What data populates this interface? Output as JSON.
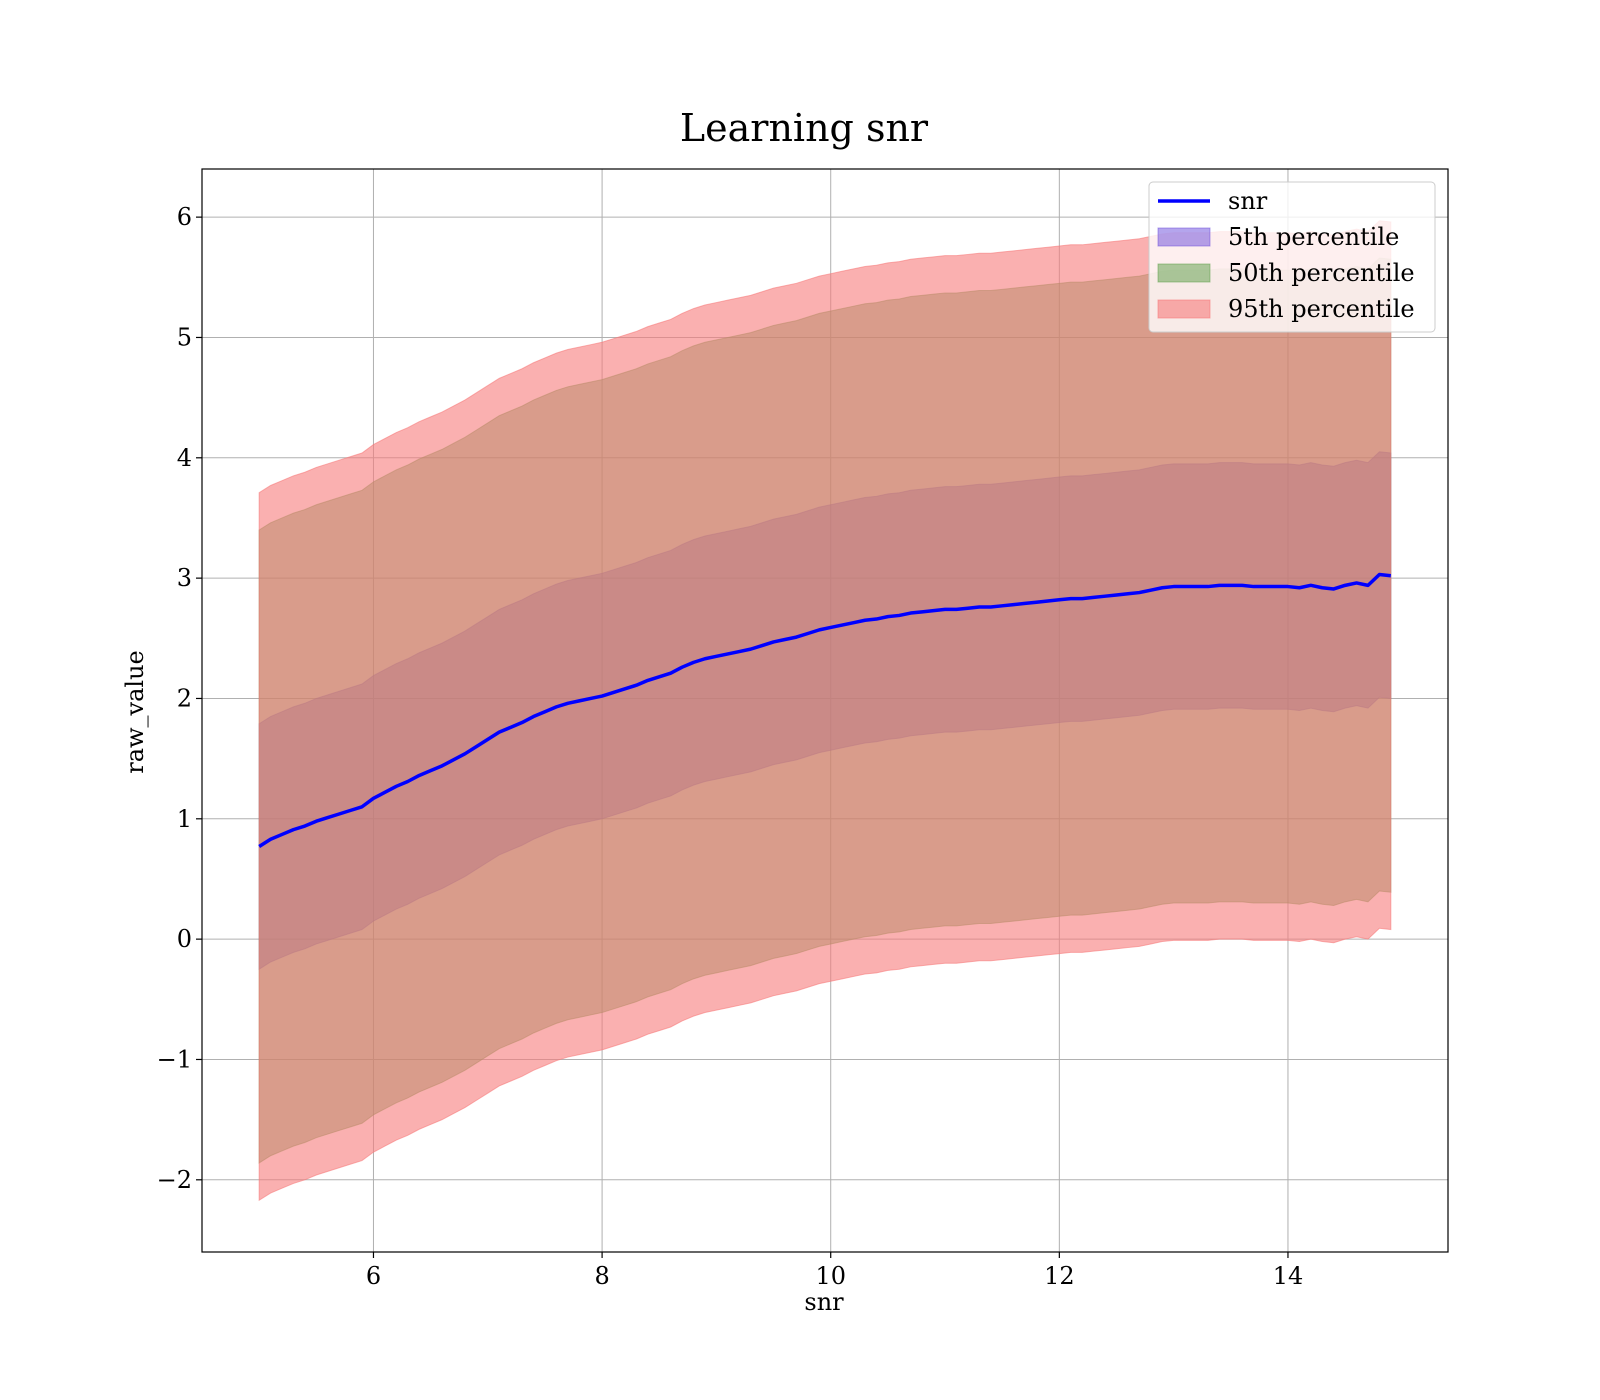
{
  "chart_data": {
    "type": "area",
    "title": "Learning snr",
    "xlabel": "snr",
    "ylabel": "raw_value",
    "xlim": [
      4.5,
      15.4
    ],
    "ylim": [
      -2.6,
      6.4
    ],
    "grid": true,
    "legend_position": "top-right",
    "x_ticks": [
      6,
      8,
      10,
      12,
      14
    ],
    "x_tick_labels": [
      "6",
      "8",
      "10",
      "12",
      "14"
    ],
    "y_ticks": [
      -2,
      -1,
      0,
      1,
      2,
      3,
      4,
      5,
      6
    ],
    "y_tick_labels": [
      "−2",
      "−1",
      "0",
      "1",
      "2",
      "3",
      "4",
      "5",
      "6"
    ],
    "x": [
      5.0,
      5.1,
      5.2,
      5.3,
      5.4,
      5.5,
      5.6,
      5.7,
      5.8,
      5.9,
      6.0,
      6.1,
      6.2,
      6.3,
      6.4,
      6.5,
      6.6,
      6.7,
      6.8,
      6.9,
      7.0,
      7.1,
      7.2,
      7.3,
      7.4,
      7.5,
      7.6,
      7.7,
      7.8,
      7.9,
      8.0,
      8.1,
      8.2,
      8.3,
      8.4,
      8.5,
      8.6,
      8.7,
      8.8,
      8.9,
      9.0,
      9.1,
      9.2,
      9.3,
      9.4,
      9.5,
      9.6,
      9.7,
      9.8,
      9.9,
      10.0,
      10.1,
      10.2,
      10.3,
      10.4,
      10.5,
      10.6,
      10.7,
      10.8,
      10.9,
      11.0,
      11.1,
      11.2,
      11.3,
      11.4,
      11.5,
      11.6,
      11.7,
      11.8,
      11.9,
      12.0,
      12.1,
      12.2,
      12.3,
      12.4,
      12.5,
      12.6,
      12.7,
      12.8,
      12.9,
      13.0,
      13.1,
      13.2,
      13.3,
      13.4,
      13.5,
      13.6,
      13.7,
      13.8,
      13.9,
      14.0,
      14.1,
      14.2,
      14.3,
      14.4,
      14.5,
      14.6,
      14.7,
      14.8,
      14.9
    ],
    "series": [
      {
        "name": "snr",
        "kind": "line",
        "color": "#0000ff",
        "values": [
          0.77,
          0.83,
          0.87,
          0.91,
          0.94,
          0.98,
          1.01,
          1.04,
          1.07,
          1.1,
          1.17,
          1.22,
          1.27,
          1.31,
          1.36,
          1.4,
          1.44,
          1.49,
          1.54,
          1.6,
          1.66,
          1.72,
          1.76,
          1.8,
          1.85,
          1.89,
          1.93,
          1.96,
          1.98,
          2.0,
          2.02,
          2.05,
          2.08,
          2.11,
          2.15,
          2.18,
          2.21,
          2.26,
          2.3,
          2.33,
          2.35,
          2.37,
          2.39,
          2.41,
          2.44,
          2.47,
          2.49,
          2.51,
          2.54,
          2.57,
          2.59,
          2.61,
          2.63,
          2.65,
          2.66,
          2.68,
          2.69,
          2.71,
          2.72,
          2.73,
          2.74,
          2.74,
          2.75,
          2.76,
          2.76,
          2.77,
          2.78,
          2.79,
          2.8,
          2.81,
          2.82,
          2.83,
          2.83,
          2.84,
          2.85,
          2.86,
          2.87,
          2.88,
          2.9,
          2.92,
          2.93,
          2.93,
          2.93,
          2.93,
          2.94,
          2.94,
          2.94,
          2.93,
          2.93,
          2.93,
          2.93,
          2.92,
          2.94,
          2.92,
          2.91,
          2.94,
          2.96,
          2.94,
          3.03,
          3.02
        ]
      },
      {
        "name": "5th percentile",
        "kind": "band",
        "color": "#6a4cdc",
        "opacity": 0.5,
        "lower": [
          -0.25,
          -0.19,
          -0.15,
          -0.11,
          -0.08,
          -0.04,
          -0.01,
          0.02,
          0.05,
          0.08,
          0.15,
          0.2,
          0.25,
          0.29,
          0.34,
          0.38,
          0.42,
          0.47,
          0.52,
          0.58,
          0.64,
          0.7,
          0.74,
          0.78,
          0.83,
          0.87,
          0.91,
          0.94,
          0.96,
          0.98,
          1.0,
          1.03,
          1.06,
          1.09,
          1.13,
          1.16,
          1.19,
          1.24,
          1.28,
          1.31,
          1.33,
          1.35,
          1.37,
          1.39,
          1.42,
          1.45,
          1.47,
          1.49,
          1.52,
          1.55,
          1.57,
          1.59,
          1.61,
          1.63,
          1.64,
          1.66,
          1.67,
          1.69,
          1.7,
          1.71,
          1.72,
          1.72,
          1.73,
          1.74,
          1.74,
          1.75,
          1.76,
          1.77,
          1.78,
          1.79,
          1.8,
          1.81,
          1.81,
          1.82,
          1.83,
          1.84,
          1.85,
          1.86,
          1.88,
          1.9,
          1.91,
          1.91,
          1.91,
          1.91,
          1.92,
          1.92,
          1.92,
          1.91,
          1.91,
          1.91,
          1.91,
          1.9,
          1.92,
          1.9,
          1.89,
          1.92,
          1.94,
          1.92,
          2.01,
          2.0
        ],
        "upper": [
          1.79,
          1.85,
          1.89,
          1.93,
          1.96,
          2.0,
          2.03,
          2.06,
          2.09,
          2.12,
          2.19,
          2.24,
          2.29,
          2.33,
          2.38,
          2.42,
          2.46,
          2.51,
          2.56,
          2.62,
          2.68,
          2.74,
          2.78,
          2.82,
          2.87,
          2.91,
          2.95,
          2.98,
          3.0,
          3.02,
          3.04,
          3.07,
          3.1,
          3.13,
          3.17,
          3.2,
          3.23,
          3.28,
          3.32,
          3.35,
          3.37,
          3.39,
          3.41,
          3.43,
          3.46,
          3.49,
          3.51,
          3.53,
          3.56,
          3.59,
          3.61,
          3.63,
          3.65,
          3.67,
          3.68,
          3.7,
          3.71,
          3.73,
          3.74,
          3.75,
          3.76,
          3.76,
          3.77,
          3.78,
          3.78,
          3.79,
          3.8,
          3.81,
          3.82,
          3.83,
          3.84,
          3.85,
          3.85,
          3.86,
          3.87,
          3.88,
          3.89,
          3.9,
          3.92,
          3.94,
          3.95,
          3.95,
          3.95,
          3.95,
          3.96,
          3.96,
          3.96,
          3.95,
          3.95,
          3.95,
          3.95,
          3.94,
          3.96,
          3.94,
          3.93,
          3.96,
          3.98,
          3.96,
          4.05,
          4.04
        ]
      },
      {
        "name": "50th percentile",
        "kind": "band",
        "color": "#5a9e46",
        "opacity": 0.5,
        "lower": [
          -1.86,
          -1.8,
          -1.76,
          -1.72,
          -1.69,
          -1.65,
          -1.62,
          -1.59,
          -1.56,
          -1.53,
          -1.46,
          -1.41,
          -1.36,
          -1.32,
          -1.27,
          -1.23,
          -1.19,
          -1.14,
          -1.09,
          -1.03,
          -0.97,
          -0.91,
          -0.87,
          -0.83,
          -0.78,
          -0.74,
          -0.7,
          -0.67,
          -0.65,
          -0.63,
          -0.61,
          -0.58,
          -0.55,
          -0.52,
          -0.48,
          -0.45,
          -0.42,
          -0.37,
          -0.33,
          -0.3,
          -0.28,
          -0.26,
          -0.24,
          -0.22,
          -0.19,
          -0.16,
          -0.14,
          -0.12,
          -0.09,
          -0.06,
          -0.04,
          -0.02,
          0.0,
          0.02,
          0.03,
          0.05,
          0.06,
          0.08,
          0.09,
          0.1,
          0.11,
          0.11,
          0.12,
          0.13,
          0.13,
          0.14,
          0.15,
          0.16,
          0.17,
          0.18,
          0.19,
          0.2,
          0.2,
          0.21,
          0.22,
          0.23,
          0.24,
          0.25,
          0.27,
          0.29,
          0.3,
          0.3,
          0.3,
          0.3,
          0.31,
          0.31,
          0.31,
          0.3,
          0.3,
          0.3,
          0.3,
          0.29,
          0.31,
          0.29,
          0.28,
          0.31,
          0.33,
          0.31,
          0.4,
          0.39
        ],
        "upper": [
          3.4,
          3.46,
          3.5,
          3.54,
          3.57,
          3.61,
          3.64,
          3.67,
          3.7,
          3.73,
          3.8,
          3.85,
          3.9,
          3.94,
          3.99,
          4.03,
          4.07,
          4.12,
          4.17,
          4.23,
          4.29,
          4.35,
          4.39,
          4.43,
          4.48,
          4.52,
          4.56,
          4.59,
          4.61,
          4.63,
          4.65,
          4.68,
          4.71,
          4.74,
          4.78,
          4.81,
          4.84,
          4.89,
          4.93,
          4.96,
          4.98,
          5.0,
          5.02,
          5.04,
          5.07,
          5.1,
          5.12,
          5.14,
          5.17,
          5.2,
          5.22,
          5.24,
          5.26,
          5.28,
          5.29,
          5.31,
          5.32,
          5.34,
          5.35,
          5.36,
          5.37,
          5.37,
          5.38,
          5.39,
          5.39,
          5.4,
          5.41,
          5.42,
          5.43,
          5.44,
          5.45,
          5.46,
          5.46,
          5.47,
          5.48,
          5.49,
          5.5,
          5.51,
          5.53,
          5.55,
          5.56,
          5.56,
          5.56,
          5.56,
          5.57,
          5.57,
          5.57,
          5.56,
          5.56,
          5.56,
          5.56,
          5.55,
          5.57,
          5.55,
          5.54,
          5.57,
          5.59,
          5.57,
          5.66,
          5.65
        ]
      },
      {
        "name": "95th percentile",
        "kind": "band",
        "color": "#f77b7b",
        "opacity": 0.6,
        "lower": [
          -2.17,
          -2.11,
          -2.07,
          -2.03,
          -2.0,
          -1.96,
          -1.93,
          -1.9,
          -1.87,
          -1.84,
          -1.77,
          -1.72,
          -1.67,
          -1.63,
          -1.58,
          -1.54,
          -1.5,
          -1.45,
          -1.4,
          -1.34,
          -1.28,
          -1.22,
          -1.18,
          -1.14,
          -1.09,
          -1.05,
          -1.01,
          -0.98,
          -0.96,
          -0.94,
          -0.92,
          -0.89,
          -0.86,
          -0.83,
          -0.79,
          -0.76,
          -0.73,
          -0.68,
          -0.64,
          -0.61,
          -0.59,
          -0.57,
          -0.55,
          -0.53,
          -0.5,
          -0.47,
          -0.45,
          -0.43,
          -0.4,
          -0.37,
          -0.35,
          -0.33,
          -0.31,
          -0.29,
          -0.28,
          -0.26,
          -0.25,
          -0.23,
          -0.22,
          -0.21,
          -0.2,
          -0.2,
          -0.19,
          -0.18,
          -0.18,
          -0.17,
          -0.16,
          -0.15,
          -0.14,
          -0.13,
          -0.12,
          -0.11,
          -0.11,
          -0.1,
          -0.09,
          -0.08,
          -0.07,
          -0.06,
          -0.04,
          -0.02,
          -0.01,
          -0.01,
          -0.01,
          -0.01,
          0.0,
          0.0,
          0.0,
          -0.01,
          -0.01,
          -0.01,
          -0.01,
          -0.02,
          0.0,
          -0.02,
          -0.03,
          0.0,
          0.02,
          0.0,
          0.09,
          0.08
        ],
        "upper": [
          3.71,
          3.77,
          3.81,
          3.85,
          3.88,
          3.92,
          3.95,
          3.98,
          4.01,
          4.04,
          4.11,
          4.16,
          4.21,
          4.25,
          4.3,
          4.34,
          4.38,
          4.43,
          4.48,
          4.54,
          4.6,
          4.66,
          4.7,
          4.74,
          4.79,
          4.83,
          4.87,
          4.9,
          4.92,
          4.94,
          4.96,
          4.99,
          5.02,
          5.05,
          5.09,
          5.12,
          5.15,
          5.2,
          5.24,
          5.27,
          5.29,
          5.31,
          5.33,
          5.35,
          5.38,
          5.41,
          5.43,
          5.45,
          5.48,
          5.51,
          5.53,
          5.55,
          5.57,
          5.59,
          5.6,
          5.62,
          5.63,
          5.65,
          5.66,
          5.67,
          5.68,
          5.68,
          5.69,
          5.7,
          5.7,
          5.71,
          5.72,
          5.73,
          5.74,
          5.75,
          5.76,
          5.77,
          5.77,
          5.78,
          5.79,
          5.8,
          5.81,
          5.82,
          5.84,
          5.86,
          5.87,
          5.87,
          5.87,
          5.87,
          5.88,
          5.88,
          5.88,
          5.87,
          5.87,
          5.87,
          5.87,
          5.86,
          5.88,
          5.86,
          5.85,
          5.88,
          5.9,
          5.88,
          5.97,
          5.96
        ]
      }
    ]
  }
}
